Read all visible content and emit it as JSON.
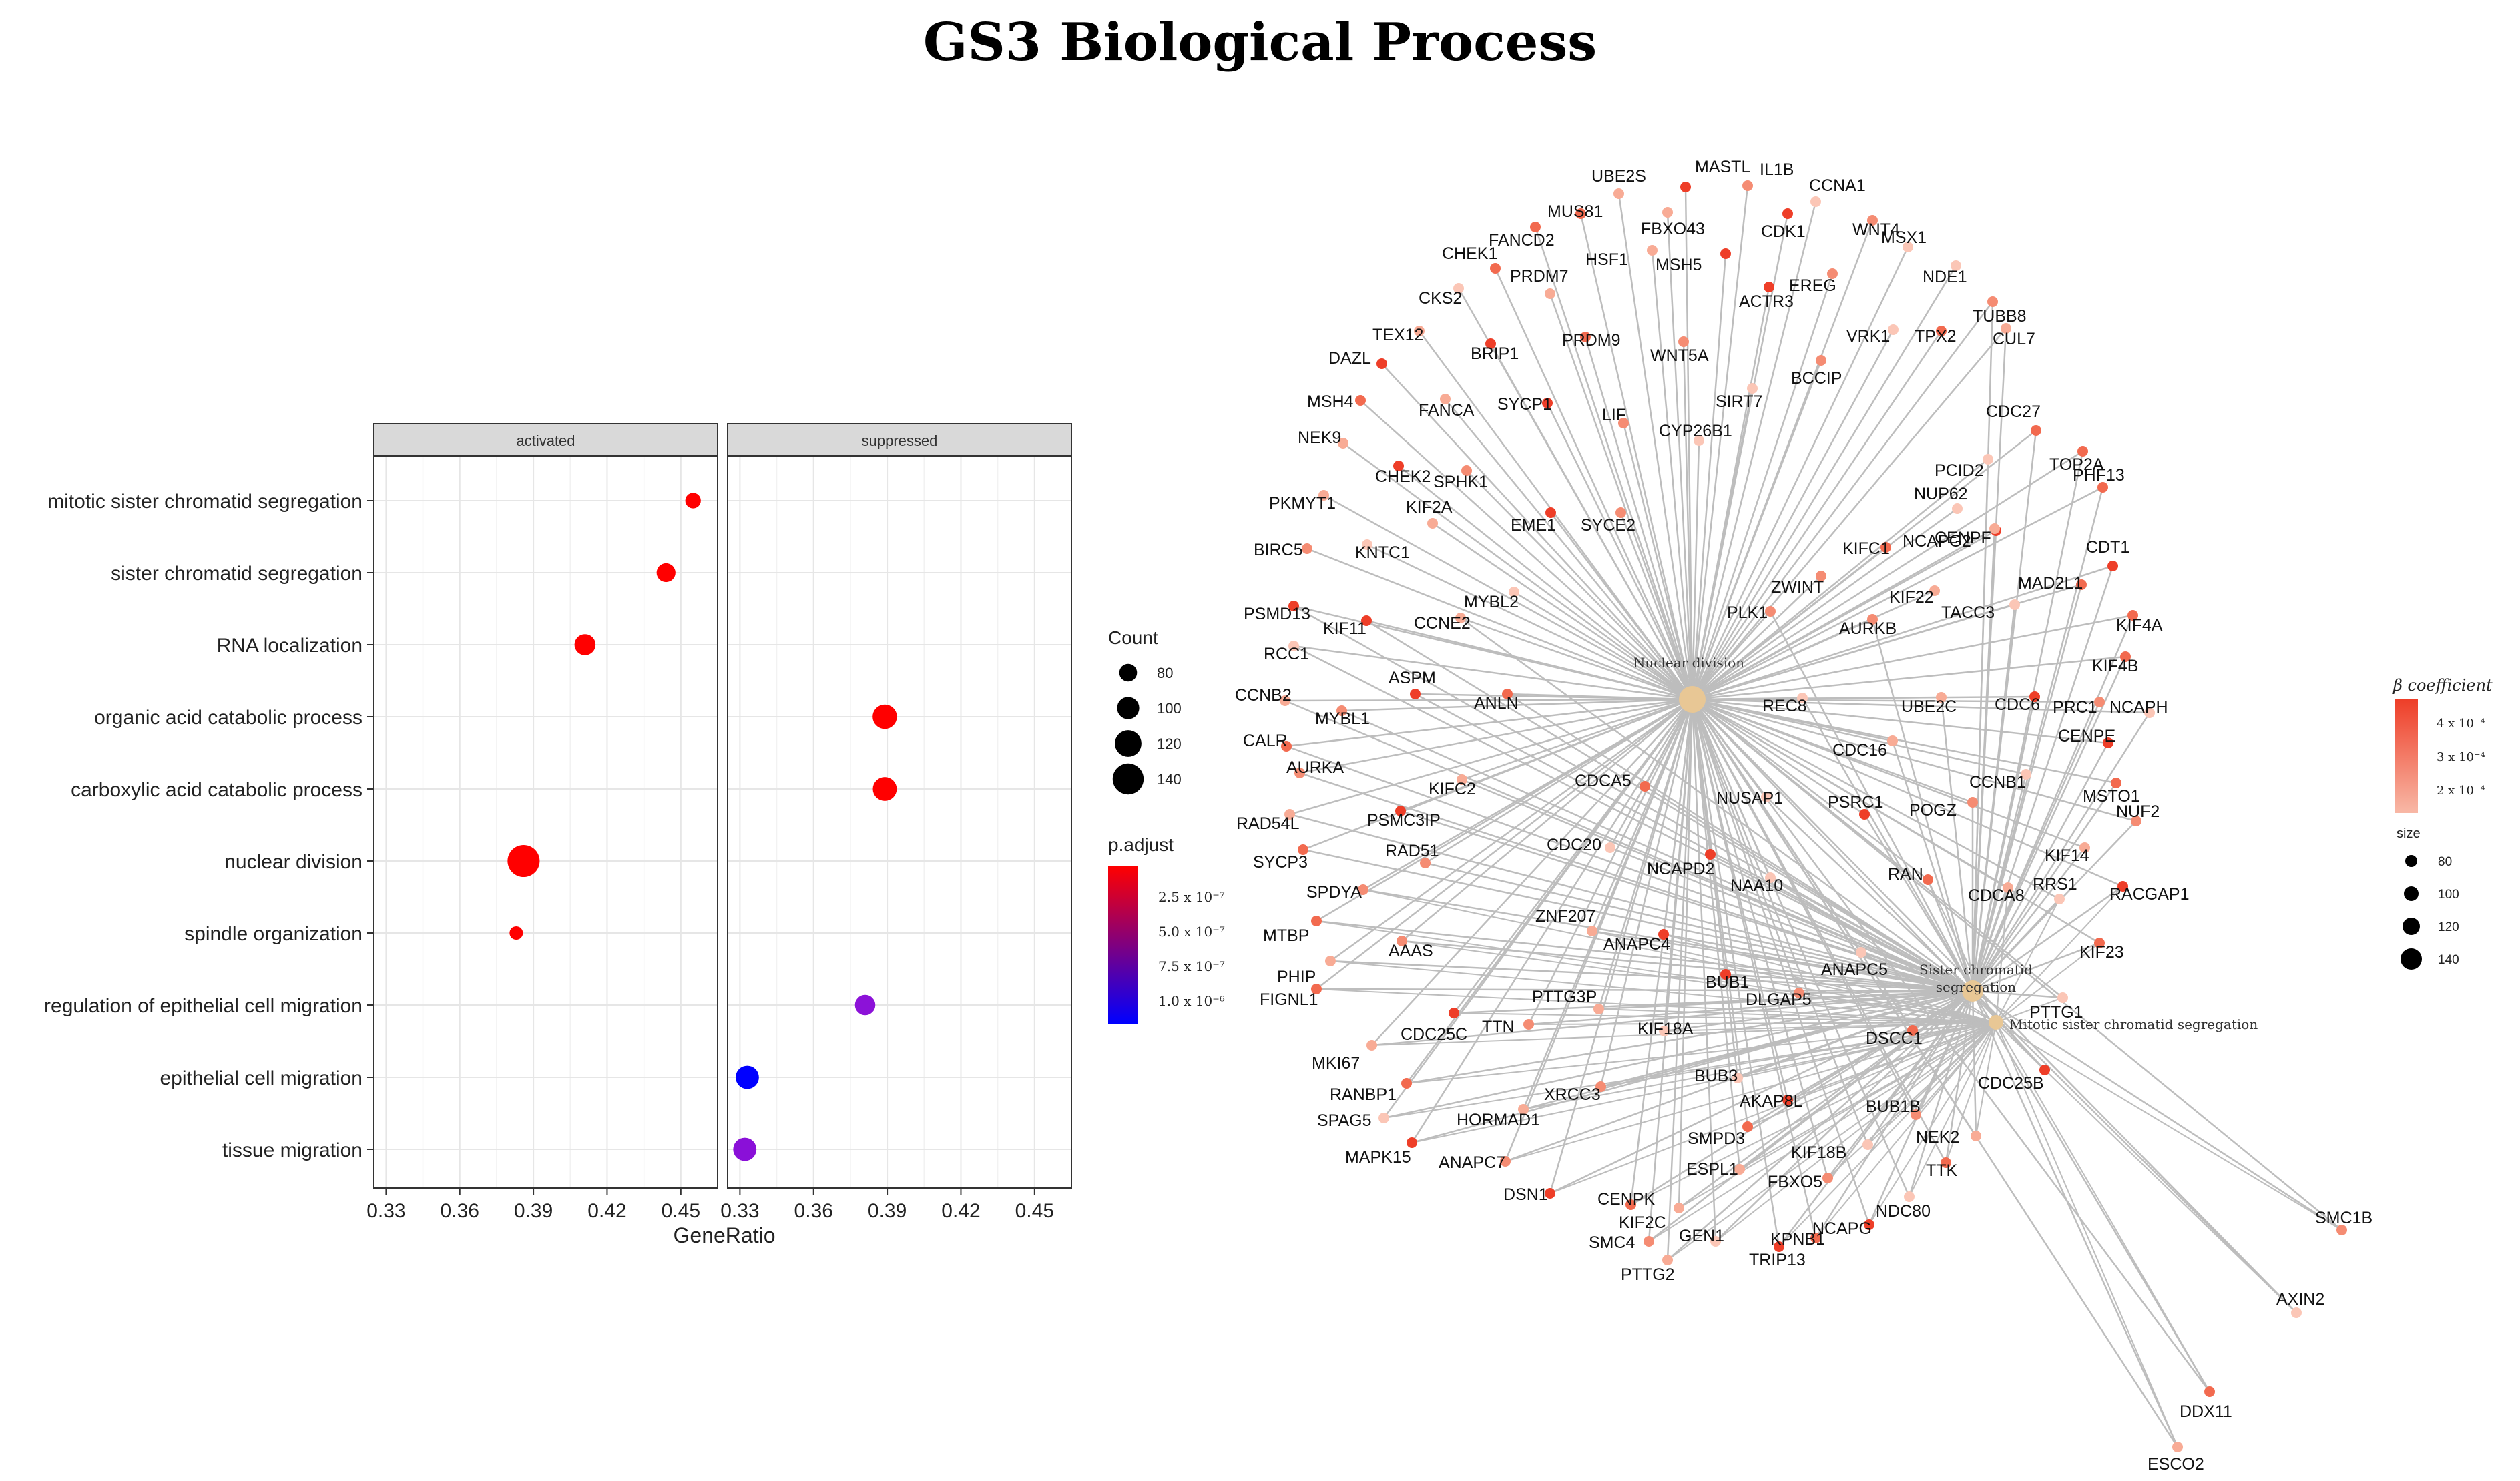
{
  "figure": {
    "title": "GS3 Biological Process"
  },
  "chart_data": [
    {
      "type": "scatter",
      "title": "",
      "facets": [
        "activated",
        "suppressed"
      ],
      "xlabel": "GeneRatio",
      "ylabel": "",
      "xlim": [
        0.325,
        0.465
      ],
      "x_ticks": [
        0.33,
        0.36,
        0.39,
        0.42,
        0.45
      ],
      "x_tick_labels": [
        "0.33",
        "0.36",
        "0.39",
        "0.42",
        "0.45"
      ],
      "categories": [
        "mitotic sister chromatid segregation",
        "sister chromatid segregation",
        "RNA localization",
        "organic acid catabolic process",
        "carboxylic acid catabolic process",
        "nuclear division",
        "spindle organization",
        "regulation of epithelial cell migration",
        "epithelial cell migration",
        "tissue migration"
      ],
      "points": [
        {
          "term": "mitotic sister chromatid segregation",
          "facet": "activated",
          "gene_ratio": 0.455,
          "count": 70,
          "color": "#ff0000"
        },
        {
          "term": "sister chromatid segregation",
          "facet": "activated",
          "gene_ratio": 0.444,
          "count": 85,
          "color": "#ff0000"
        },
        {
          "term": "RNA localization",
          "facet": "activated",
          "gene_ratio": 0.411,
          "count": 95,
          "color": "#ff0000"
        },
        {
          "term": "nuclear division",
          "facet": "activated",
          "gene_ratio": 0.386,
          "count": 145,
          "color": "#ff0000"
        },
        {
          "term": "spindle organization",
          "facet": "activated",
          "gene_ratio": 0.383,
          "count": 60,
          "color": "#ff0000"
        },
        {
          "term": "organic acid catabolic process",
          "facet": "suppressed",
          "gene_ratio": 0.389,
          "count": 110,
          "color": "#ff0000"
        },
        {
          "term": "carboxylic acid catabolic process",
          "facet": "suppressed",
          "gene_ratio": 0.389,
          "count": 108,
          "color": "#ff0000"
        },
        {
          "term": "regulation of epithelial cell migration",
          "facet": "suppressed",
          "gene_ratio": 0.381,
          "count": 92,
          "color": "#8c12d8"
        },
        {
          "term": "epithelial cell migration",
          "facet": "suppressed",
          "gene_ratio": 0.333,
          "count": 105,
          "color": "#0000ff"
        },
        {
          "term": "tissue migration",
          "facet": "suppressed",
          "gene_ratio": 0.332,
          "count": 105,
          "color": "#8a10d8"
        }
      ],
      "legend_count": {
        "title": "Count",
        "values": [
          80,
          100,
          120,
          140
        ],
        "labels": [
          "80",
          "100",
          "120",
          "140"
        ]
      },
      "legend_padjust": {
        "title": "p.adjust",
        "labels": [
          "2.5 x 10⁻⁷",
          "5.0 x 10⁻⁷",
          "7.5 x 10⁻⁷",
          "1.0 x 10⁻⁶"
        ],
        "colors": [
          "#ff0000",
          "#0000ff"
        ]
      }
    },
    {
      "type": "network",
      "title": "",
      "hubs": [
        "Nuclear division",
        "Sister chromatid segregation",
        "Mitotic sister chromatid segregation"
      ],
      "hub_labels": [
        [
          "Nuclear division"
        ],
        [
          "Sister chromatid",
          "segregation"
        ],
        [
          "Mitotic sister chromatid segregation"
        ]
      ],
      "genes": [
        "UBE2S",
        "MASTL",
        "IL1B",
        "CCNA1",
        "MUS81",
        "FBXO43",
        "CDK1",
        "WNT4",
        "MSX1",
        "FANCD2",
        "HSF1",
        "MSH5",
        "EREG",
        "NDE1",
        "CHEK1",
        "PRDM7",
        "ACTR3",
        "TUBB8",
        "CKS2",
        "PRDM9",
        "TEX12",
        "BRIP1",
        "WNT5A",
        "VRK1",
        "TPX2",
        "CUL7",
        "DAZL",
        "BCCIP",
        "SIRT7",
        "MSH4",
        "FANCA",
        "SYCP1",
        "LIF",
        "CYP26B1",
        "CDC27",
        "NEK9",
        "CHEK2",
        "SPHK1",
        "PCID2",
        "TOP2A",
        "PKMYT1",
        "EME1",
        "SYCE2",
        "NUP62",
        "PHF13",
        "KIF2A",
        "NCAPG2",
        "BIRC5",
        "KNTC1",
        "KIFC1",
        "CENPF",
        "CDT1",
        "ZWINT",
        "MYBL2",
        "MAD2L1",
        "KIF22",
        "PSMD13",
        "PLK1",
        "TACC3",
        "KIF4A",
        "CCNE2",
        "KIF11",
        "AURKB",
        "RCC1",
        "KIF4B",
        "CCNB2",
        "ASPM",
        "PRC1",
        "REC8",
        "ANLN",
        "UBE2C",
        "CDC6",
        "MYBL1",
        "NCAPH",
        "CALR",
        "CDC16",
        "CENPE",
        "AURKA",
        "CCNB1",
        "MSTO1",
        "KIFC2",
        "PSRC1",
        "POGZ",
        "NUSAP1",
        "CDCA5",
        "RAD54L",
        "PSMC3IP",
        "NUF2",
        "CDC20",
        "SYCP3",
        "KIF14",
        "NCAPD2",
        "RAD51",
        "NAA10",
        "RAN",
        "CDCA8",
        "RACGAP1",
        "SPDYA",
        "RRS1",
        "MTBP",
        "ZNF207",
        "ANAPC4",
        "AAAS",
        "ANAPC5",
        "KIF23",
        "PHIP",
        "BUB1",
        "DLGAP5",
        "PTTG1",
        "FIGNL1",
        "PTTG3P",
        "CDC25C",
        "TTN",
        "KIF18A",
        "DSCC1",
        "MKI67",
        "CDC25B",
        "XRCC3",
        "BUB3",
        "RANBP1",
        "HORMAD1",
        "AKAP8L",
        "BUB1B",
        "SPAG5",
        "SMPD3",
        "NEK2",
        "MAPK15",
        "ANAPC7",
        "KIF18B",
        "TTK",
        "ESPL1",
        "DSN1",
        "FBXO5",
        "NDC80",
        "CENPK",
        "KIF2C",
        "NCAPG",
        "SMC4",
        "GEN1",
        "KPNB1",
        "PTTG2",
        "TRIP13",
        "SMC1B",
        "AXIN2",
        "DDX11",
        "ESCO2"
      ],
      "legend_beta": {
        "title": "β coefficient",
        "labels": [
          "4 x 10⁻⁴",
          "3 x 10⁻⁴",
          "2 x 10⁻⁴"
        ],
        "colors": [
          "#ee3e28",
          "#f8b8a6"
        ]
      },
      "legend_size": {
        "title": "size",
        "values": [
          80,
          100,
          120,
          140
        ],
        "labels": [
          "80",
          "100",
          "120",
          "140"
        ]
      }
    }
  ]
}
